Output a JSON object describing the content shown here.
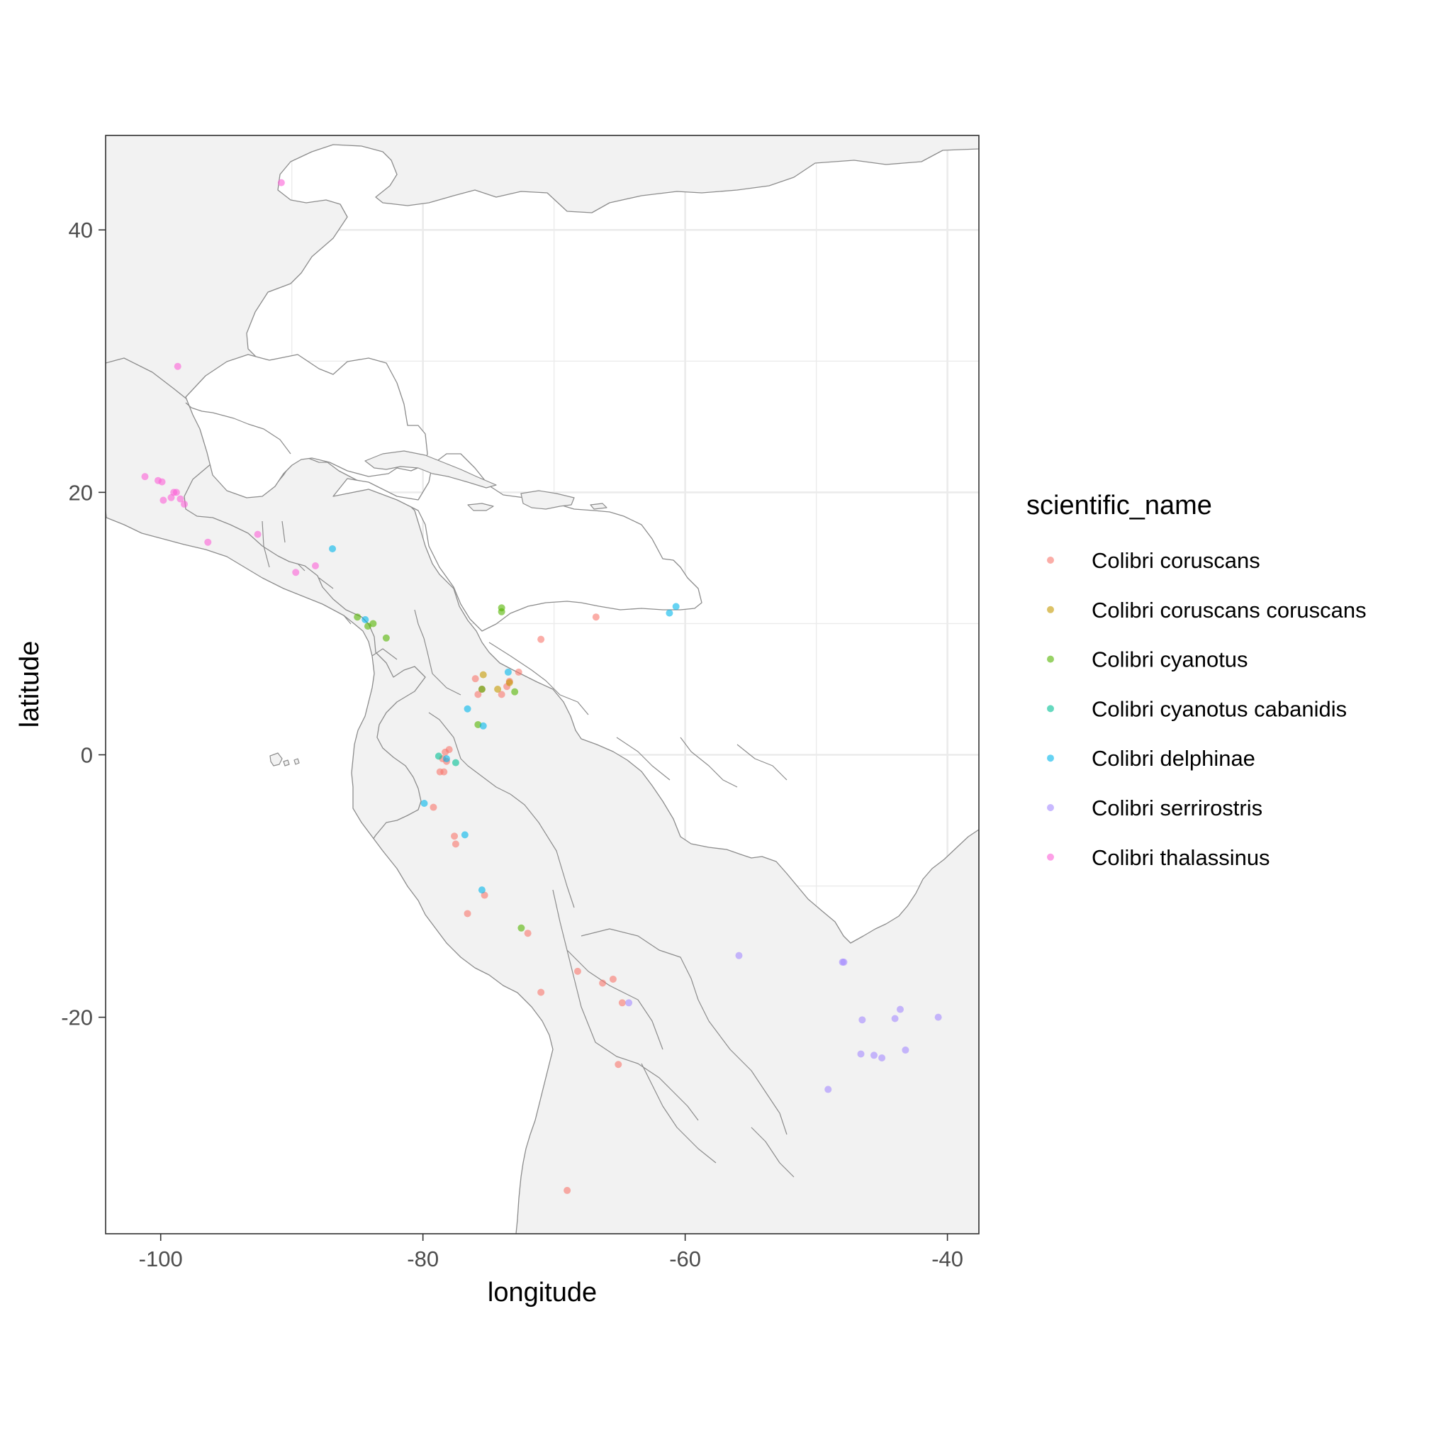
{
  "chart_data": {
    "type": "scatter",
    "xlabel": "longitude",
    "ylabel": "latitude",
    "xlim": [
      -104.2,
      -37.6
    ],
    "ylim": [
      -36.5,
      47.2
    ],
    "x_ticks": [
      -100,
      -80,
      -60,
      -40
    ],
    "y_ticks": [
      -20,
      0,
      20,
      40
    ],
    "x_tick_labels": [
      "-100",
      "-80",
      "-60",
      "-40"
    ],
    "y_tick_labels": [
      "-20",
      "0",
      "20",
      "40"
    ],
    "grid": true,
    "legend_position": "right",
    "legend_title": "scientific_name",
    "background_map": "Americas coastline and country borders",
    "series": [
      {
        "name": "Colibri coruscans",
        "color": "#F8766D",
        "points": [
          [
            -76.0,
            5.8
          ],
          [
            -75.5,
            5.0
          ],
          [
            -75.8,
            4.6
          ],
          [
            -74.0,
            4.6
          ],
          [
            -73.6,
            5.2
          ],
          [
            -73.4,
            5.6
          ],
          [
            -72.7,
            6.3
          ],
          [
            -71.0,
            8.8
          ],
          [
            -66.8,
            10.5
          ],
          [
            -78.3,
            0.2
          ],
          [
            -78.0,
            0.4
          ],
          [
            -78.5,
            -0.3
          ],
          [
            -78.2,
            -0.5
          ],
          [
            -78.4,
            -1.3
          ],
          [
            -78.7,
            -1.3
          ],
          [
            -79.2,
            -4.0
          ],
          [
            -77.6,
            -6.2
          ],
          [
            -77.5,
            -6.8
          ],
          [
            -75.3,
            -10.7
          ],
          [
            -76.6,
            -12.1
          ],
          [
            -72.0,
            -13.6
          ],
          [
            -68.2,
            -16.5
          ],
          [
            -66.3,
            -17.4
          ],
          [
            -65.5,
            -17.1
          ],
          [
            -64.8,
            -18.9
          ],
          [
            -71.0,
            -18.1
          ],
          [
            -65.1,
            -23.6
          ],
          [
            -69.0,
            -33.2
          ]
        ]
      },
      {
        "name": "Colibri coruscans coruscans",
        "color": "#C49A00",
        "points": [
          [
            -75.4,
            6.1
          ],
          [
            -74.3,
            5.0
          ],
          [
            -73.4,
            5.5
          ]
        ]
      },
      {
        "name": "Colibri cyanotus",
        "color": "#53B400",
        "points": [
          [
            -85.0,
            10.5
          ],
          [
            -84.2,
            9.8
          ],
          [
            -83.8,
            10.0
          ],
          [
            -82.8,
            8.9
          ],
          [
            -74.0,
            11.2
          ],
          [
            -74.0,
            10.9
          ],
          [
            -75.5,
            5.0
          ],
          [
            -73.0,
            4.8
          ],
          [
            -75.8,
            2.3
          ],
          [
            -72.5,
            -13.2
          ]
        ]
      },
      {
        "name": "Colibri cyanotus cabanidis",
        "color": "#00C094",
        "points": [
          [
            -78.8,
            -0.1
          ],
          [
            -77.5,
            -0.6
          ]
        ]
      },
      {
        "name": "Colibri delphinae",
        "color": "#00B6EB",
        "points": [
          [
            -86.9,
            15.7
          ],
          [
            -84.4,
            10.3
          ],
          [
            -76.6,
            3.5
          ],
          [
            -75.4,
            2.2
          ],
          [
            -73.5,
            6.3
          ],
          [
            -79.9,
            -3.7
          ],
          [
            -76.8,
            -6.1
          ],
          [
            -75.5,
            -10.3
          ],
          [
            -61.2,
            10.8
          ],
          [
            -60.7,
            11.3
          ],
          [
            -78.2,
            -0.3
          ]
        ]
      },
      {
        "name": "Colibri serrirostris",
        "color": "#A58AFF",
        "points": [
          [
            -55.9,
            -15.3
          ],
          [
            -47.9,
            -15.8
          ],
          [
            -48.0,
            -15.8
          ],
          [
            -46.5,
            -20.2
          ],
          [
            -44.0,
            -20.1
          ],
          [
            -43.6,
            -19.4
          ],
          [
            -40.7,
            -20.0
          ],
          [
            -46.6,
            -22.8
          ],
          [
            -45.6,
            -22.9
          ],
          [
            -45.0,
            -23.1
          ],
          [
            -43.2,
            -22.5
          ],
          [
            -49.1,
            -25.5
          ],
          [
            -64.3,
            -18.9
          ]
        ]
      },
      {
        "name": "Colibri thalassinus",
        "color": "#FB61D7",
        "points": [
          [
            -90.8,
            43.6
          ],
          [
            -98.7,
            29.6
          ],
          [
            -101.2,
            21.2
          ],
          [
            -100.2,
            20.9
          ],
          [
            -99.9,
            20.8
          ],
          [
            -99.0,
            20.0
          ],
          [
            -98.8,
            20.0
          ],
          [
            -99.2,
            19.6
          ],
          [
            -98.5,
            19.5
          ],
          [
            -99.8,
            19.4
          ],
          [
            -98.2,
            19.1
          ],
          [
            -96.4,
            16.2
          ],
          [
            -92.6,
            16.8
          ],
          [
            -89.7,
            13.9
          ],
          [
            -88.2,
            14.4
          ]
        ]
      }
    ]
  }
}
